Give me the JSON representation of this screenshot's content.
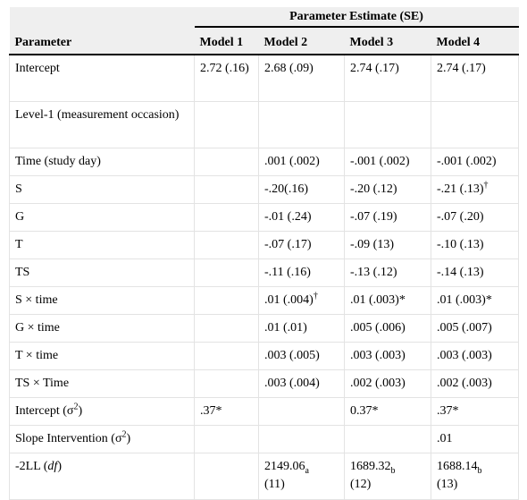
{
  "header": {
    "group_title": "Parameter Estimate (SE)",
    "param_label": "Parameter",
    "models": [
      "Model 1",
      "Model 2",
      "Model 3",
      "Model 4"
    ]
  },
  "rows": [
    {
      "param": "Intercept",
      "m1": "2.72 (.16)",
      "m2": "2.68 (.09)",
      "m3": "2.74 (.17)",
      "m4": "2.74 (.17)"
    },
    {
      "param": "Level-1 (measurement occasion)",
      "m1": "",
      "m2": "",
      "m3": "",
      "m4": ""
    },
    {
      "param": "Time (study day)",
      "m1": "",
      "m2": ".001 (.002)",
      "m3": "-.001 (.002)",
      "m4": "-.001 (.002)"
    },
    {
      "param": "S",
      "m1": "",
      "m2": "-.20(.16)",
      "m3": "-.20 (.12)",
      "m4": "-.21 (.13)",
      "m4_sup": "†"
    },
    {
      "param": "G",
      "m1": "",
      "m2": "-.01 (.24)",
      "m3": "-.07 (.19)",
      "m4": "-.07 (.20)"
    },
    {
      "param": "T",
      "m1": "",
      "m2": "-.07 (.17)",
      "m3": "-.09 (13)",
      "m4": "-.10 (.13)"
    },
    {
      "param": "TS",
      "m1": "",
      "m2": "-.11 (.16)",
      "m3": "-.13 (.12)",
      "m4": "-.14 (.13)"
    },
    {
      "param": "S × time",
      "m1": "",
      "m2": ".01 (.004)",
      "m2_sup": "†",
      "m3": ".01 (.003)*",
      "m4": ".01 (.003)*"
    },
    {
      "param": "G × time",
      "m1": "",
      "m2": ".01 (.01)",
      "m3": ".005 (.006)",
      "m4": ".005 (.007)"
    },
    {
      "param": "T × time",
      "m1": "",
      "m2": ".003 (.005)",
      "m3": ".003 (.003)",
      "m4": ".003 (.003)"
    },
    {
      "param": "TS × Time",
      "m1": "",
      "m2": ".003 (.004)",
      "m3": ".002 (.003)",
      "m4": ".002 (.003)"
    },
    {
      "param": "Intercept (σ",
      "param_sup": "2",
      "param_tail": ")",
      "m1": ".37*",
      "m2": "",
      "m3": "0.37*",
      "m4": ".37*"
    },
    {
      "param": "Slope Intervention (σ",
      "param_sup": "2",
      "param_tail": ")",
      "m1": "",
      "m2": "",
      "m3": "",
      "m4": ".01"
    },
    {
      "param": "-2LL (",
      "param_italic": "df",
      "param_tail": ")",
      "m1": "",
      "m2": "2149.06",
      "m2_sub": "a",
      "m2_line2": "(11)",
      "m3": "1689.32",
      "m3_sub": "b",
      "m3_line2": "(12)",
      "m4": "1688.14",
      "m4_sub": "b",
      "m4_line2": "(13)"
    }
  ]
}
